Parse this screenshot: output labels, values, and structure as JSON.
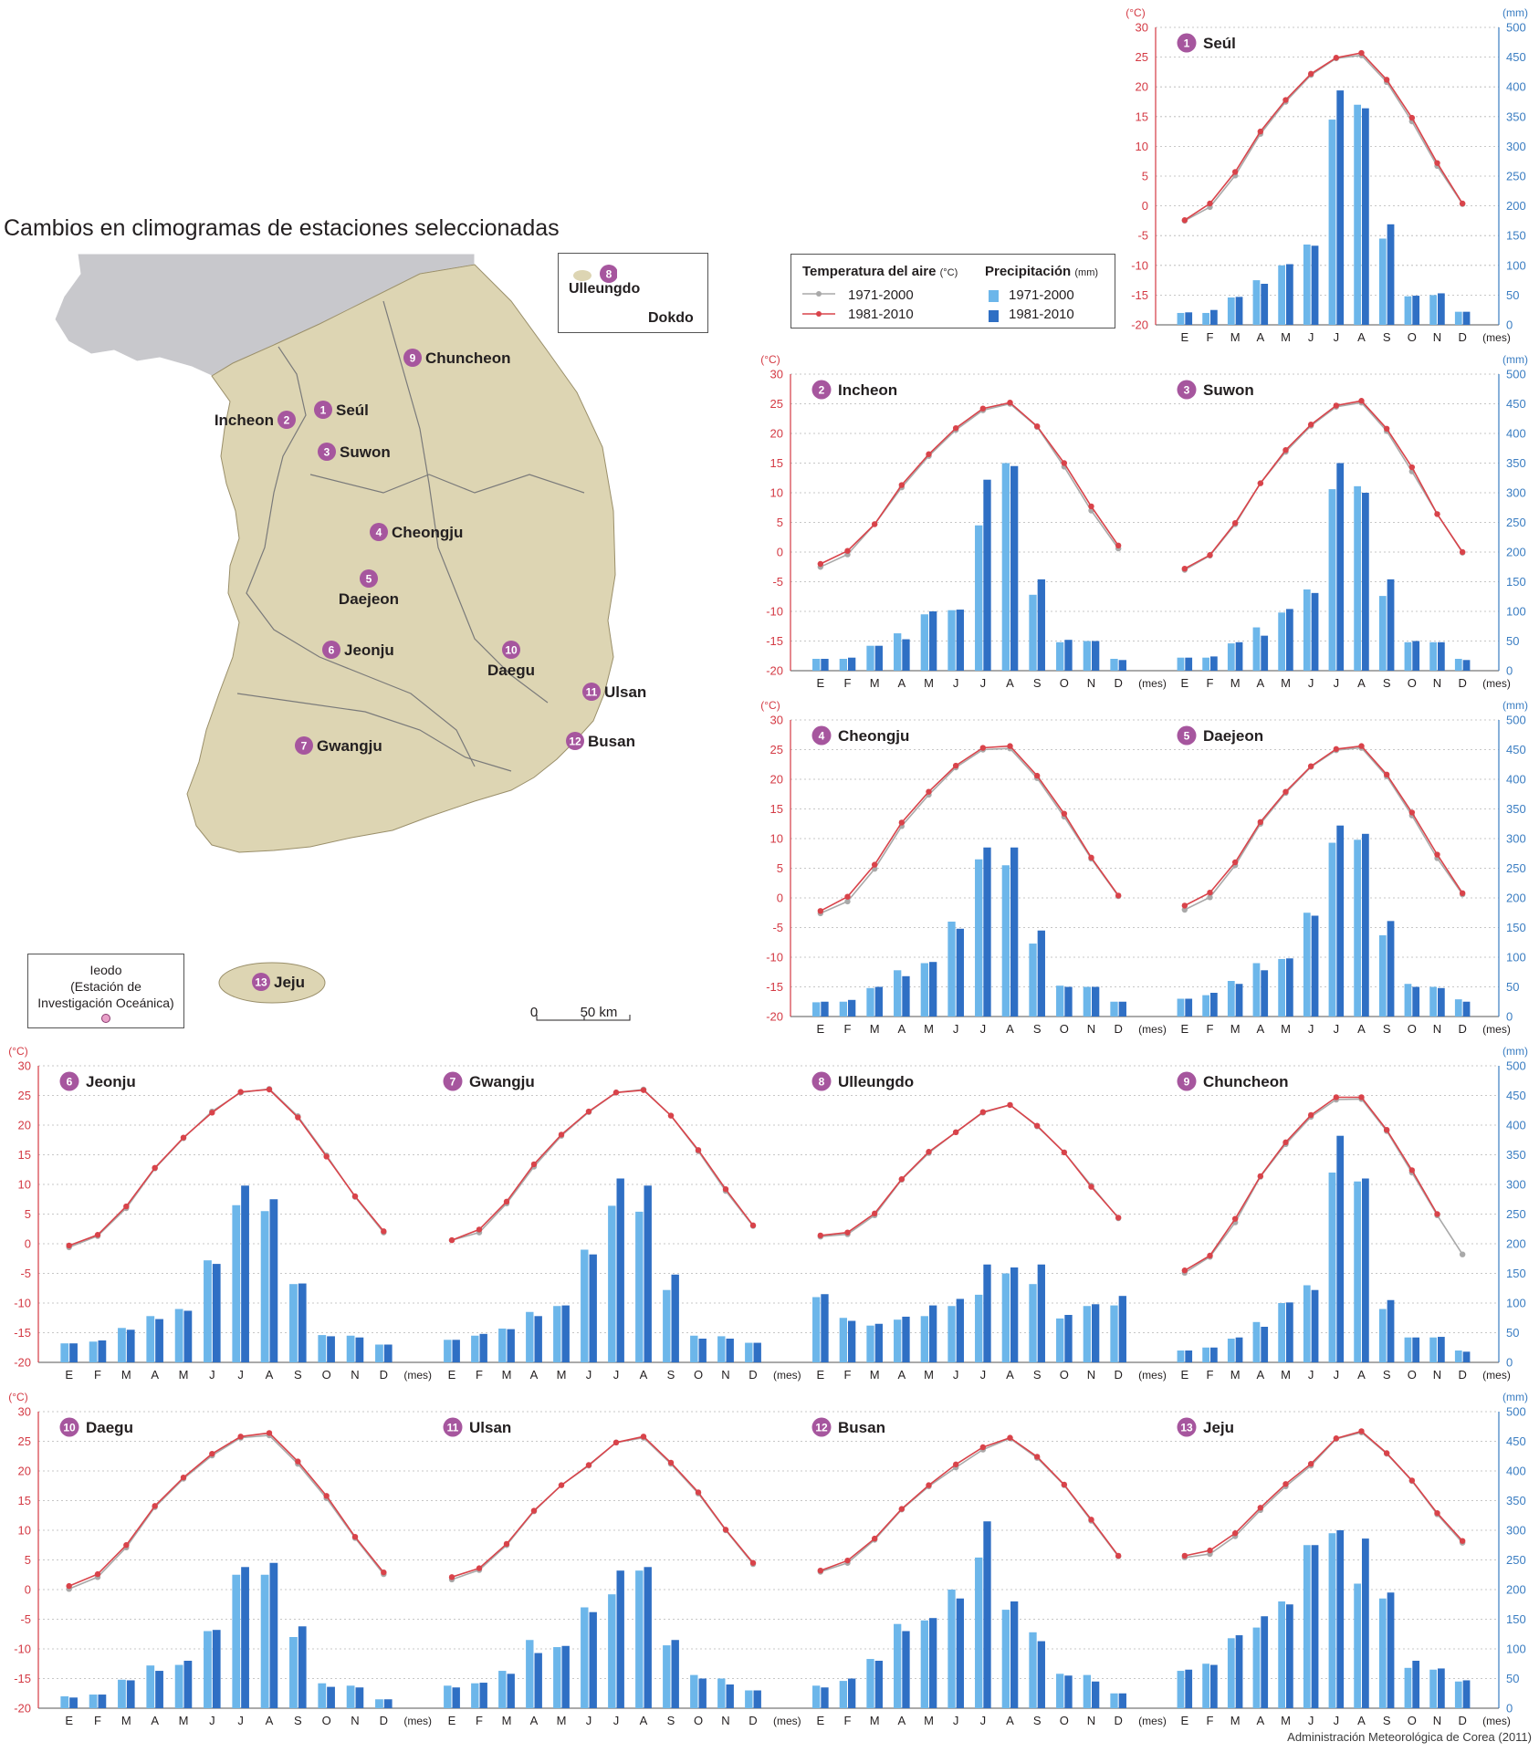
{
  "title": "Cambios en climogramas de estaciones seleccionadas",
  "source": "Administración Meteorológica de Corea (2011)",
  "legend": {
    "temp_title": "Temperatura del aire",
    "temp_unit": "(°C)",
    "precip_title": "Precipitación",
    "precip_unit": "(mm)",
    "period_old": "1971-2000",
    "period_new": "1981-2010"
  },
  "colors": {
    "temp_old": "#a9a9a9",
    "temp_new": "#d9434a",
    "precip_old": "#6cb6ea",
    "precip_new": "#2f6fc4",
    "badge": "#a6569e",
    "land": "#ddd5b3",
    "north": "#c8c8cc",
    "axis_left": "#d43a44",
    "axis_right": "#3a7dc2"
  },
  "map": {
    "ulleung_box": {
      "number": "8",
      "label1": "Ulleungdo",
      "label2": "Dokdo"
    },
    "ieodo_box": {
      "line1": "Ieodo",
      "line2": "(Estación de",
      "line3": "Investigación Oceánica)"
    },
    "scale": {
      "zero": "0",
      "dist": "50 km"
    },
    "labels": [
      {
        "n": "1",
        "name": "Seúl"
      },
      {
        "n": "2",
        "name": "Incheon"
      },
      {
        "n": "3",
        "name": "Suwon"
      },
      {
        "n": "4",
        "name": "Cheongju"
      },
      {
        "n": "5",
        "name": "Daejeon"
      },
      {
        "n": "6",
        "name": "Jeonju"
      },
      {
        "n": "7",
        "name": "Gwangju"
      },
      {
        "n": "9",
        "name": "Chuncheon"
      },
      {
        "n": "10",
        "name": "Daegu"
      },
      {
        "n": "11",
        "name": "Ulsan"
      },
      {
        "n": "12",
        "name": "Busan"
      },
      {
        "n": "13",
        "name": "Jeju"
      }
    ]
  },
  "axes_labels": {
    "left_unit": "(°C)",
    "right_unit": "(mm)",
    "months_unit": "(mes)",
    "left_ticks": [
      "30",
      "25",
      "20",
      "15",
      "10",
      "5",
      "0",
      "-5",
      "-10",
      "-15",
      "-20"
    ],
    "right_ticks": [
      "500",
      "450",
      "400",
      "350",
      "300",
      "250",
      "200",
      "150",
      "100",
      "50",
      "0"
    ]
  },
  "chart_data": {
    "type": "climograph",
    "months": [
      "E",
      "F",
      "M",
      "A",
      "M",
      "J",
      "J",
      "A",
      "S",
      "O",
      "N",
      "D"
    ],
    "temperature_range": [
      -20,
      30
    ],
    "precipitation_range": [
      0,
      500
    ],
    "stations": [
      {
        "n": "1",
        "name": "Seúl",
        "t_old": [
          -2.5,
          -0.2,
          5.1,
          12.1,
          17.5,
          22.0,
          24.8,
          25.3,
          20.8,
          14.2,
          6.7,
          0.3
        ],
        "t_new": [
          -2.4,
          0.4,
          5.7,
          12.5,
          17.8,
          22.2,
          24.9,
          25.7,
          21.2,
          14.8,
          7.2,
          0.4
        ],
        "p_old": [
          20,
          20,
          46,
          75,
          100,
          135,
          345,
          370,
          145,
          48,
          50,
          22
        ],
        "p_new": [
          21,
          25,
          47,
          69,
          102,
          133,
          394,
          364,
          169,
          49,
          53,
          22
        ]
      },
      {
        "n": "2",
        "name": "Incheon",
        "t_old": [
          -2.5,
          -0.4,
          4.7,
          10.9,
          16.2,
          20.6,
          23.9,
          25.0,
          21.1,
          14.4,
          7.0,
          0.6
        ],
        "t_new": [
          -2.0,
          0.2,
          4.7,
          11.3,
          16.5,
          20.9,
          24.2,
          25.2,
          21.2,
          15.0,
          7.7,
          1.1
        ],
        "p_old": [
          20,
          20,
          42,
          63,
          95,
          102,
          245,
          350,
          128,
          48,
          50,
          20
        ],
        "p_new": [
          20,
          22,
          42,
          53,
          100,
          103,
          322,
          345,
          154,
          52,
          50,
          18
        ]
      },
      {
        "n": "3",
        "name": "Suwon",
        "t_old": [
          -3.0,
          -0.6,
          4.7,
          11.6,
          16.9,
          21.3,
          24.5,
          25.2,
          20.4,
          13.6,
          6.4,
          -0.1
        ],
        "t_new": [
          -2.8,
          -0.5,
          4.9,
          11.6,
          17.2,
          21.5,
          24.7,
          25.5,
          20.8,
          14.3,
          6.4,
          0.0
        ],
        "p_old": [
          22,
          22,
          46,
          73,
          98,
          137,
          306,
          311,
          126,
          48,
          48,
          20
        ],
        "p_new": [
          22,
          24,
          48,
          59,
          104,
          131,
          350,
          300,
          154,
          50,
          48,
          18
        ]
      },
      {
        "n": "4",
        "name": "Cheongju",
        "t_old": [
          -2.6,
          -0.6,
          4.9,
          12.1,
          17.4,
          22.0,
          25.0,
          25.2,
          20.2,
          13.7,
          6.6,
          0.3
        ],
        "t_new": [
          -2.2,
          0.2,
          5.6,
          12.7,
          17.9,
          22.3,
          25.3,
          25.6,
          20.6,
          14.2,
          6.8,
          0.4
        ],
        "p_old": [
          24,
          25,
          48,
          78,
          90,
          160,
          265,
          255,
          123,
          52,
          50,
          25
        ],
        "p_new": [
          25,
          28,
          50,
          68,
          92,
          148,
          285,
          285,
          145,
          50,
          50,
          25
        ]
      },
      {
        "n": "5",
        "name": "Daejeon",
        "t_old": [
          -2.0,
          0.1,
          5.5,
          12.5,
          17.7,
          22.1,
          24.9,
          25.3,
          20.5,
          13.9,
          6.7,
          0.6
        ],
        "t_new": [
          -1.3,
          0.9,
          6.0,
          12.8,
          17.9,
          22.2,
          25.1,
          25.6,
          20.8,
          14.4,
          7.3,
          0.8
        ],
        "p_old": [
          30,
          36,
          60,
          90,
          97,
          175,
          293,
          298,
          137,
          55,
          50,
          29
        ],
        "p_new": [
          30,
          40,
          55,
          78,
          98,
          170,
          322,
          308,
          161,
          50,
          48,
          25
        ]
      },
      {
        "n": "6",
        "name": "Jeonju",
        "t_old": [
          -0.6,
          1.3,
          6.0,
          12.7,
          17.8,
          22.3,
          25.5,
          26.1,
          21.5,
          14.9,
          7.9,
          1.9
        ],
        "t_new": [
          -0.3,
          1.5,
          6.3,
          12.8,
          17.9,
          22.1,
          25.6,
          26.0,
          21.3,
          14.7,
          8.0,
          2.1
        ],
        "p_old": [
          32,
          35,
          58,
          78,
          90,
          172,
          265,
          255,
          132,
          46,
          45,
          30
        ],
        "p_new": [
          32,
          37,
          55,
          73,
          87,
          166,
          298,
          275,
          133,
          44,
          42,
          30
        ]
      },
      {
        "n": "7",
        "name": "Gwangju",
        "t_old": [
          0.6,
          1.9,
          6.8,
          13.0,
          18.2,
          22.2,
          25.5,
          26.0,
          21.6,
          15.6,
          8.9,
          3.0
        ],
        "t_new": [
          0.6,
          2.4,
          7.1,
          13.4,
          18.4,
          22.3,
          25.5,
          25.9,
          21.6,
          15.8,
          9.2,
          3.1
        ],
        "p_old": [
          38,
          45,
          57,
          85,
          95,
          190,
          264,
          254,
          122,
          45,
          44,
          33
        ],
        "p_new": [
          38,
          48,
          56,
          78,
          96,
          182,
          310,
          298,
          148,
          40,
          40,
          33
        ]
      },
      {
        "n": "8",
        "name": "Ulleungdo",
        "t_old": [
          1.2,
          1.6,
          4.8,
          10.8,
          15.3,
          18.8,
          22.1,
          23.4,
          19.8,
          15.4,
          9.8,
          4.3
        ],
        "t_new": [
          1.4,
          1.9,
          5.1,
          10.9,
          15.5,
          18.8,
          22.2,
          23.4,
          19.9,
          15.4,
          9.6,
          4.4
        ],
        "p_old": [
          110,
          75,
          62,
          72,
          78,
          95,
          114,
          150,
          132,
          74,
          95,
          96
        ],
        "p_new": [
          115,
          70,
          65,
          77,
          96,
          107,
          165,
          160,
          165,
          80,
          98,
          112
        ]
      },
      {
        "n": "9",
        "name": "Chuncheon",
        "t_old": [
          -4.9,
          -2.2,
          3.6,
          11.3,
          16.8,
          21.4,
          24.3,
          24.4,
          19.0,
          12.0,
          4.8,
          -1.8
        ],
        "t_new": [
          -4.5,
          -2.0,
          4.2,
          11.4,
          17.1,
          21.7,
          24.7,
          24.7,
          19.2,
          12.4,
          5.0,
          null
        ],
        "p_old": [
          20,
          25,
          40,
          68,
          100,
          130,
          320,
          305,
          90,
          42,
          42,
          20
        ],
        "p_new": [
          20,
          25,
          42,
          60,
          101,
          122,
          382,
          310,
          105,
          42,
          43,
          18
        ]
      },
      {
        "n": "10",
        "name": "Daegu",
        "t_old": [
          0.1,
          2.1,
          7.1,
          13.9,
          18.7,
          22.6,
          25.6,
          26.0,
          21.2,
          15.4,
          8.7,
          2.6
        ],
        "t_new": [
          0.6,
          2.6,
          7.5,
          14.1,
          18.9,
          22.9,
          25.8,
          26.4,
          21.6,
          15.8,
          8.9,
          2.9
        ],
        "p_old": [
          20,
          23,
          48,
          72,
          73,
          130,
          225,
          225,
          120,
          42,
          38,
          15
        ],
        "p_new": [
          18,
          23,
          47,
          63,
          80,
          132,
          238,
          245,
          138,
          36,
          35,
          15
        ]
      },
      {
        "n": "11",
        "name": "Ulsan",
        "t_old": [
          1.7,
          3.3,
          7.5,
          13.2,
          17.6,
          20.9,
          24.8,
          25.6,
          21.2,
          16.2,
          10.0,
          4.3
        ],
        "t_new": [
          2.1,
          3.6,
          7.7,
          13.3,
          17.6,
          21.0,
          24.8,
          25.8,
          21.4,
          16.4,
          10.1,
          4.5
        ],
        "p_old": [
          38,
          42,
          63,
          115,
          103,
          170,
          192,
          232,
          106,
          56,
          50,
          30
        ],
        "p_new": [
          35,
          43,
          58,
          93,
          105,
          162,
          232,
          238,
          115,
          50,
          40,
          30
        ]
      },
      {
        "n": "12",
        "name": "Busan",
        "t_old": [
          3.0,
          4.5,
          8.4,
          13.5,
          17.4,
          20.6,
          23.6,
          25.5,
          22.2,
          17.6,
          11.6,
          5.6
        ],
        "t_new": [
          3.2,
          4.9,
          8.6,
          13.6,
          17.6,
          21.1,
          24.0,
          25.6,
          22.4,
          17.7,
          11.8,
          5.7
        ],
        "p_old": [
          38,
          46,
          83,
          142,
          148,
          200,
          254,
          166,
          128,
          58,
          56,
          25
        ],
        "p_new": [
          35,
          50,
          80,
          130,
          152,
          185,
          315,
          180,
          113,
          55,
          45,
          25
        ]
      },
      {
        "n": "13",
        "name": "Jeju",
        "t_old": [
          5.4,
          6.0,
          9.0,
          13.4,
          17.4,
          20.9,
          25.4,
          26.5,
          22.9,
          18.3,
          12.7,
          7.9
        ],
        "t_new": [
          5.7,
          6.6,
          9.5,
          13.8,
          17.8,
          21.2,
          25.5,
          26.7,
          23.0,
          18.4,
          12.9,
          8.2
        ],
        "p_old": [
          63,
          75,
          118,
          136,
          180,
          275,
          295,
          210,
          185,
          68,
          65,
          45
        ],
        "p_new": [
          65,
          73,
          123,
          155,
          175,
          275,
          300,
          286,
          195,
          80,
          67,
          47
        ]
      }
    ]
  }
}
